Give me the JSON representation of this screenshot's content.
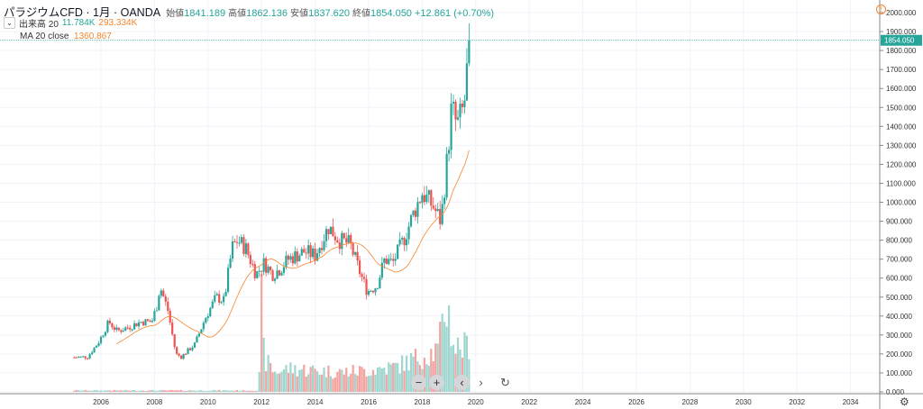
{
  "header": {
    "title": "パラジウムCFD · 1月 · OANDA",
    "open_label": "始値",
    "open": "1841.189",
    "high_label": "高値",
    "high": "1862.136",
    "low_label": "安値",
    "low": "1837.620",
    "close_label": "終値",
    "close": "1854.050",
    "change": "+12.861 (+0.70%)"
  },
  "volume_legend": {
    "label": "出来高 20",
    "v1": "11.784K",
    "v2": "293.334K"
  },
  "ma_legend": {
    "label": "MA 20 close",
    "value": "1360.867"
  },
  "controls": {
    "zoom_out": "−",
    "zoom_in": "+",
    "back": "‹",
    "forward": "›",
    "reset": "↻",
    "settings": "⚙"
  },
  "colors": {
    "up": "#26a69a",
    "down": "#ef5350",
    "ma": "#f7852d",
    "vol_up": "#9fd6cf",
    "vol_down": "#f5a3a0"
  },
  "chart_data": {
    "type": "candlestick",
    "price_axis": {
      "ylim": [
        0,
        2000
      ],
      "ticks": [
        "2000.000",
        "1900.000",
        "1800.000",
        "1700.000",
        "1600.000",
        "1500.000",
        "1400.000",
        "1300.000",
        "1200.000",
        "1100.000",
        "1000.000",
        "900.000",
        "800.000",
        "700.000",
        "600.000",
        "500.000",
        "400.000",
        "300.000",
        "200.000",
        "100.000",
        "0.000"
      ],
      "last_price": "1854.050"
    },
    "time_axis": {
      "ticks": [
        "2006",
        "2008",
        "2010",
        "2012",
        "2014",
        "2016",
        "2018",
        "2020",
        "2022",
        "2024",
        "2026",
        "2028",
        "2030",
        "2032",
        "2034"
      ]
    },
    "price_anchors": [
      [
        2005.0,
        182
      ],
      [
        2005.5,
        185
      ],
      [
        2005.9,
        260
      ],
      [
        2006.3,
        370
      ],
      [
        2006.6,
        320
      ],
      [
        2007.0,
        340
      ],
      [
        2007.5,
        370
      ],
      [
        2007.9,
        370
      ],
      [
        2008.1,
        460
      ],
      [
        2008.2,
        560
      ],
      [
        2008.5,
        430
      ],
      [
        2008.8,
        200
      ],
      [
        2009.0,
        185
      ],
      [
        2009.5,
        250
      ],
      [
        2009.9,
        390
      ],
      [
        2010.3,
        500
      ],
      [
        2010.6,
        480
      ],
      [
        2010.9,
        760
      ],
      [
        2011.1,
        800
      ],
      [
        2011.4,
        760
      ],
      [
        2011.8,
        620
      ],
      [
        2012.1,
        680
      ],
      [
        2012.4,
        620
      ],
      [
        2012.7,
        650
      ],
      [
        2013.0,
        700
      ],
      [
        2013.3,
        720
      ],
      [
        2013.6,
        740
      ],
      [
        2014.0,
        720
      ],
      [
        2014.5,
        870
      ],
      [
        2014.9,
        800
      ],
      [
        2015.3,
        780
      ],
      [
        2015.7,
        620
      ],
      [
        2015.95,
        530
      ],
      [
        2016.3,
        560
      ],
      [
        2016.6,
        700
      ],
      [
        2016.9,
        680
      ],
      [
        2017.3,
        800
      ],
      [
        2017.7,
        950
      ],
      [
        2018.0,
        1050
      ],
      [
        2018.4,
        980
      ],
      [
        2018.7,
        900
      ],
      [
        2018.95,
        1250
      ],
      [
        2019.1,
        1500
      ],
      [
        2019.3,
        1400
      ],
      [
        2019.5,
        1480
      ],
      [
        2019.6,
        1550
      ],
      [
        2019.75,
        1854
      ]
    ],
    "volume_anchors_k": [
      [
        2005.0,
        8
      ],
      [
        2011.9,
        8
      ],
      [
        2012.0,
        480
      ],
      [
        2012.1,
        180
      ],
      [
        2012.5,
        110
      ],
      [
        2013.0,
        130
      ],
      [
        2014.0,
        120
      ],
      [
        2015.0,
        110
      ],
      [
        2016.0,
        120
      ],
      [
        2017.0,
        140
      ],
      [
        2018.0,
        200
      ],
      [
        2018.6,
        230
      ],
      [
        2018.9,
        500
      ],
      [
        2019.2,
        250
      ],
      [
        2019.75,
        250
      ]
    ],
    "ma_period": 20
  }
}
